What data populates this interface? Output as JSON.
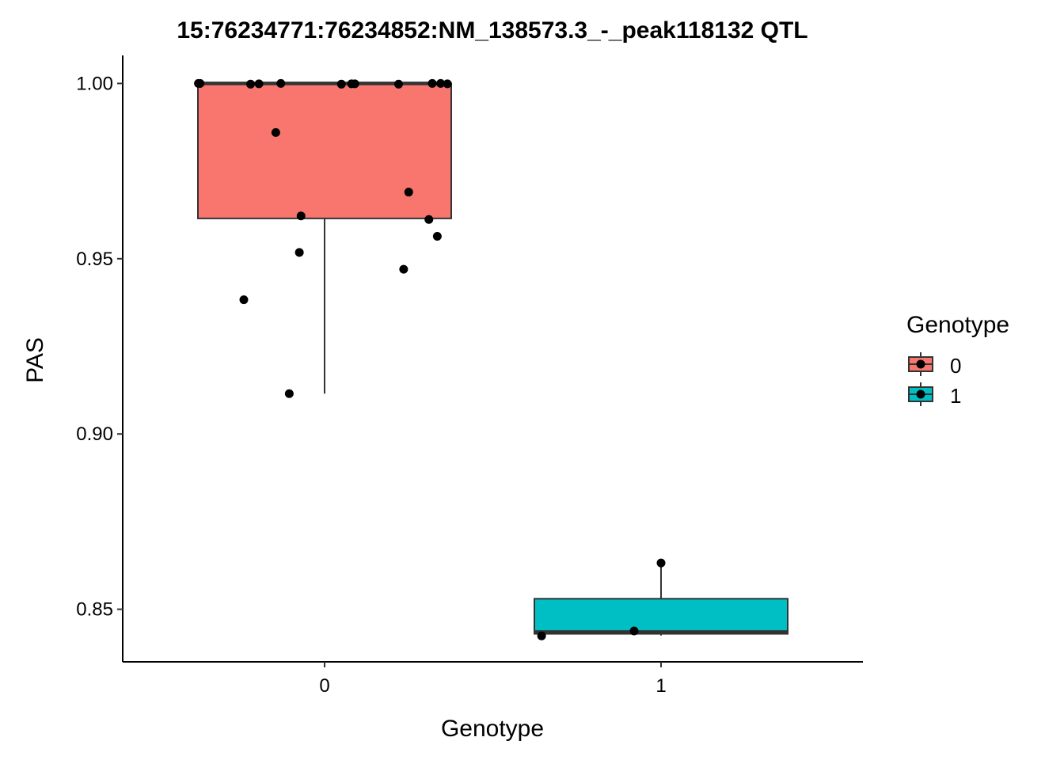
{
  "chart_data": {
    "type": "boxplot",
    "title": "15:76234771:76234852:NM_138573.3_-_peak118132 QTL",
    "xlabel": "Genotype",
    "ylabel": "PAS",
    "categories": [
      "0",
      "1"
    ],
    "ylim": [
      0.835,
      1.008
    ],
    "yticks": [
      0.85,
      0.9,
      0.95,
      1.0
    ],
    "ytick_labels": [
      "0.85",
      "0.90",
      "0.95",
      "1.00"
    ],
    "grid": false,
    "legend": {
      "title": "Genotype",
      "position": "right",
      "entries": [
        "0",
        "1"
      ]
    },
    "colors": {
      "0": "#F8766D",
      "1": "#00BFC4"
    },
    "boxes": [
      {
        "group": "0",
        "min": 0.9115,
        "q1": 0.9615,
        "median": 1.0,
        "q3": 1.0,
        "max": 1.0
      },
      {
        "group": "1",
        "min": 0.8425,
        "q1": 0.843,
        "median": 0.8435,
        "q3": 0.853,
        "max": 0.8632
      }
    ],
    "points": [
      {
        "group": "0",
        "offset": -0.375,
        "y": 1.0
      },
      {
        "group": "0",
        "offset": -0.37,
        "y": 1.0
      },
      {
        "group": "0",
        "offset": -0.22,
        "y": 0.9998
      },
      {
        "group": "0",
        "offset": -0.195,
        "y": 0.9999
      },
      {
        "group": "0",
        "offset": -0.13,
        "y": 1.0
      },
      {
        "group": "0",
        "offset": 0.05,
        "y": 0.9998
      },
      {
        "group": "0",
        "offset": 0.08,
        "y": 0.9999
      },
      {
        "group": "0",
        "offset": 0.09,
        "y": 0.9999
      },
      {
        "group": "0",
        "offset": 0.22,
        "y": 0.9998
      },
      {
        "group": "0",
        "offset": 0.32,
        "y": 1.0
      },
      {
        "group": "0",
        "offset": 0.345,
        "y": 1.0
      },
      {
        "group": "0",
        "offset": 0.365,
        "y": 0.9999
      },
      {
        "group": "0",
        "offset": -0.145,
        "y": 0.986
      },
      {
        "group": "0",
        "offset": 0.25,
        "y": 0.969
      },
      {
        "group": "0",
        "offset": -0.07,
        "y": 0.9622
      },
      {
        "group": "0",
        "offset": 0.31,
        "y": 0.9612
      },
      {
        "group": "0",
        "offset": 0.335,
        "y": 0.9564
      },
      {
        "group": "0",
        "offset": -0.075,
        "y": 0.9518
      },
      {
        "group": "0",
        "offset": 0.235,
        "y": 0.947
      },
      {
        "group": "0",
        "offset": -0.24,
        "y": 0.9383
      },
      {
        "group": "0",
        "offset": -0.105,
        "y": 0.9115
      },
      {
        "group": "1",
        "offset": -0.355,
        "y": 0.8424
      },
      {
        "group": "1",
        "offset": -0.08,
        "y": 0.8438
      },
      {
        "group": "1",
        "offset": 0.0,
        "y": 0.8632
      }
    ]
  }
}
